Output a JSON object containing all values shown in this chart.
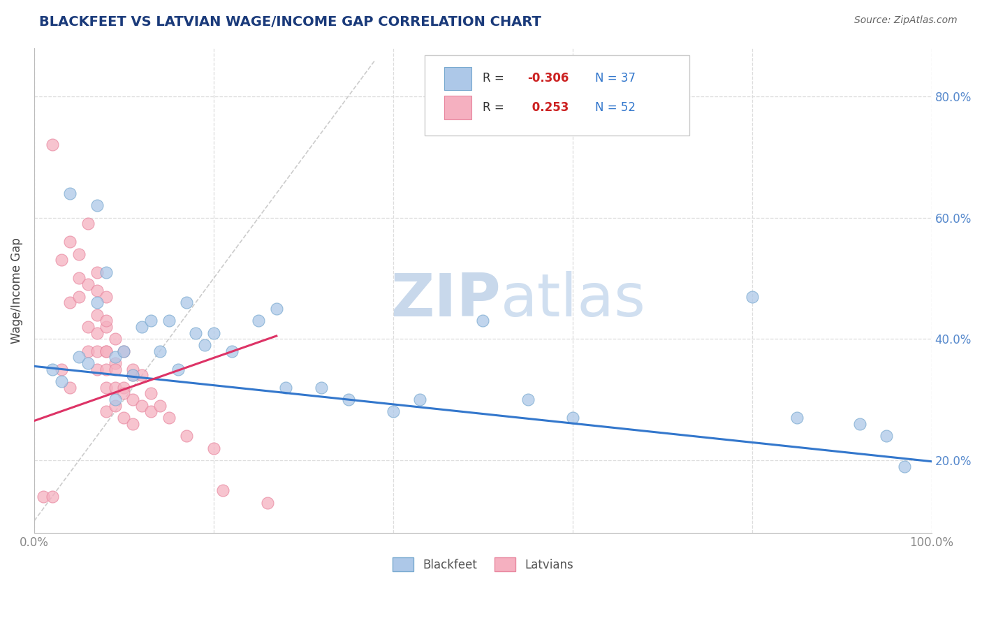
{
  "title": "BLACKFEET VS LATVIAN WAGE/INCOME GAP CORRELATION CHART",
  "source": "Source: ZipAtlas.com",
  "ylabel": "Wage/Income Gap",
  "xlim": [
    0.0,
    1.0
  ],
  "ylim": [
    0.08,
    0.88
  ],
  "y_ticks": [
    0.2,
    0.4,
    0.6,
    0.8
  ],
  "y_tick_labels": [
    "20.0%",
    "40.0%",
    "60.0%",
    "80.0%"
  ],
  "x_tick_positions": [
    0.0,
    0.2,
    0.4,
    0.6,
    0.8,
    1.0
  ],
  "x_tick_labels": [
    "0.0%",
    "",
    "",
    "",
    "",
    "100.0%"
  ],
  "blue_color": "#adc8e8",
  "pink_color": "#f5b0c0",
  "blue_edge": "#7aaad0",
  "pink_edge": "#e888a0",
  "trend_blue": "#3377cc",
  "trend_pink": "#dd3366",
  "ref_line_color": "#cccccc",
  "R_blue": -0.306,
  "N_blue": 37,
  "R_pink": 0.253,
  "N_pink": 52,
  "blackfeet_x": [
    0.02,
    0.03,
    0.04,
    0.05,
    0.06,
    0.07,
    0.07,
    0.08,
    0.09,
    0.09,
    0.1,
    0.11,
    0.12,
    0.13,
    0.14,
    0.15,
    0.16,
    0.17,
    0.18,
    0.19,
    0.2,
    0.22,
    0.25,
    0.27,
    0.28,
    0.32,
    0.35,
    0.4,
    0.43,
    0.5,
    0.55,
    0.6,
    0.8,
    0.85,
    0.92,
    0.95,
    0.97
  ],
  "blackfeet_y": [
    0.35,
    0.33,
    0.64,
    0.37,
    0.36,
    0.62,
    0.46,
    0.51,
    0.37,
    0.3,
    0.38,
    0.34,
    0.42,
    0.43,
    0.38,
    0.43,
    0.35,
    0.46,
    0.41,
    0.39,
    0.41,
    0.38,
    0.43,
    0.45,
    0.32,
    0.32,
    0.3,
    0.28,
    0.3,
    0.43,
    0.3,
    0.27,
    0.47,
    0.27,
    0.26,
    0.24,
    0.19
  ],
  "latvian_x": [
    0.01,
    0.02,
    0.02,
    0.03,
    0.03,
    0.04,
    0.04,
    0.04,
    0.05,
    0.05,
    0.05,
    0.06,
    0.06,
    0.06,
    0.06,
    0.07,
    0.07,
    0.07,
    0.07,
    0.07,
    0.07,
    0.08,
    0.08,
    0.08,
    0.08,
    0.08,
    0.08,
    0.08,
    0.08,
    0.09,
    0.09,
    0.09,
    0.09,
    0.09,
    0.1,
    0.1,
    0.1,
    0.1,
    0.11,
    0.11,
    0.11,
    0.11,
    0.12,
    0.12,
    0.13,
    0.13,
    0.14,
    0.15,
    0.17,
    0.2,
    0.21,
    0.26
  ],
  "latvian_y": [
    0.14,
    0.14,
    0.72,
    0.35,
    0.53,
    0.32,
    0.46,
    0.56,
    0.5,
    0.47,
    0.54,
    0.38,
    0.42,
    0.59,
    0.49,
    0.48,
    0.44,
    0.38,
    0.51,
    0.35,
    0.41,
    0.38,
    0.32,
    0.42,
    0.28,
    0.35,
    0.47,
    0.43,
    0.38,
    0.36,
    0.4,
    0.35,
    0.32,
    0.29,
    0.32,
    0.38,
    0.31,
    0.27,
    0.34,
    0.3,
    0.26,
    0.35,
    0.34,
    0.29,
    0.31,
    0.28,
    0.29,
    0.27,
    0.24,
    0.22,
    0.15,
    0.13
  ],
  "watermark_zip": "ZIP",
  "watermark_atlas": "atlas",
  "background_color": "#ffffff",
  "grid_color": "#dddddd",
  "legend_box_color": "#cccccc",
  "title_color": "#1a3a7a",
  "source_color": "#666666",
  "axis_label_color": "#444444",
  "tick_color": "#888888",
  "right_tick_color": "#5588cc"
}
